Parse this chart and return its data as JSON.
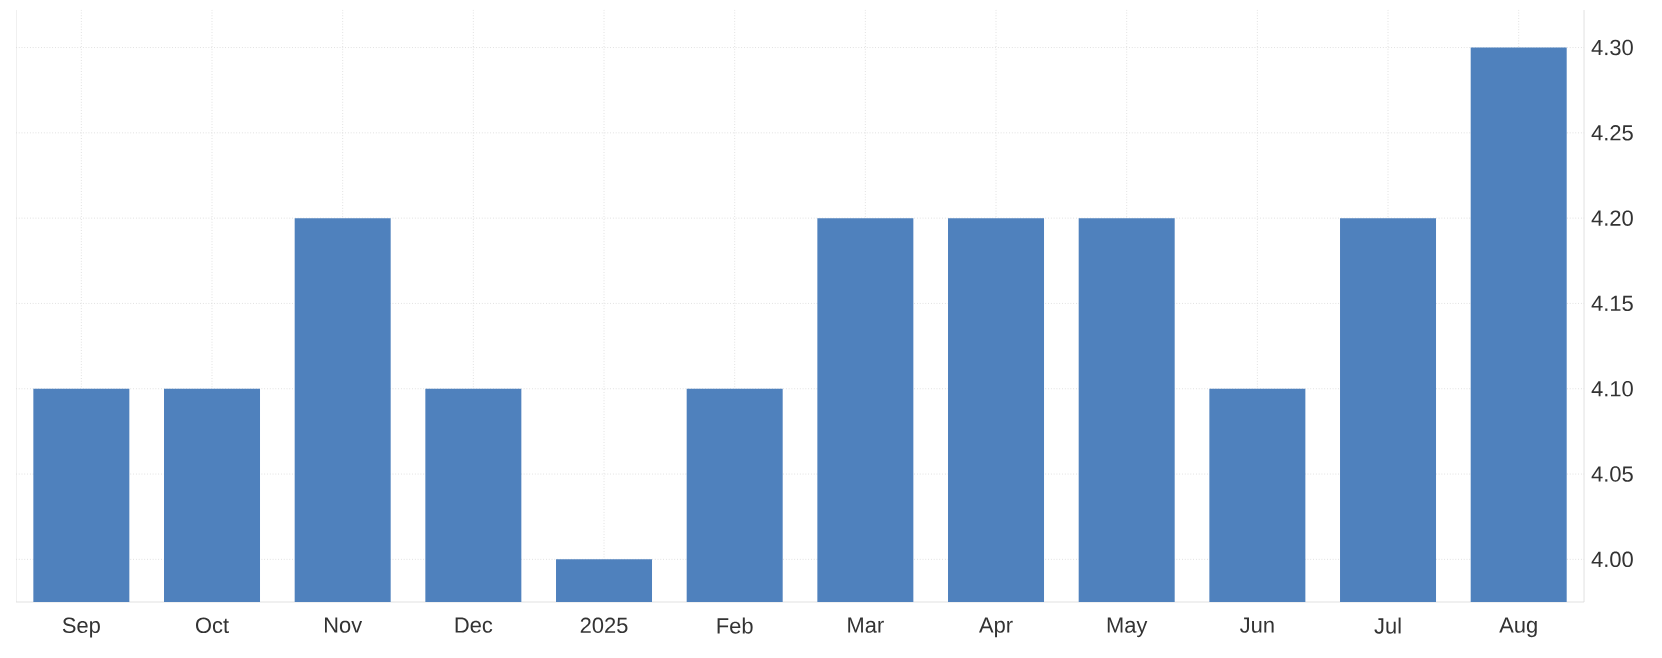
{
  "chart_data": {
    "type": "bar",
    "categories": [
      "Sep",
      "Oct",
      "Nov",
      "Dec",
      "2025",
      "Feb",
      "Mar",
      "Apr",
      "May",
      "Jun",
      "Jul",
      "Aug"
    ],
    "values": [
      4.1,
      4.1,
      4.2,
      4.1,
      4.0,
      4.1,
      4.2,
      4.2,
      4.2,
      4.1,
      4.2,
      4.3
    ],
    "color": "#4f81bd",
    "ylim": [
      3.975,
      4.322
    ],
    "yticks": [
      {
        "value": 4.0,
        "label": "4.00"
      },
      {
        "value": 4.05,
        "label": "4.05"
      },
      {
        "value": 4.1,
        "label": "4.10"
      },
      {
        "value": 4.15,
        "label": "4.15"
      },
      {
        "value": 4.2,
        "label": "4.20"
      },
      {
        "value": 4.25,
        "label": "4.25"
      },
      {
        "value": 4.3,
        "label": "4.30"
      }
    ],
    "grid": true
  }
}
